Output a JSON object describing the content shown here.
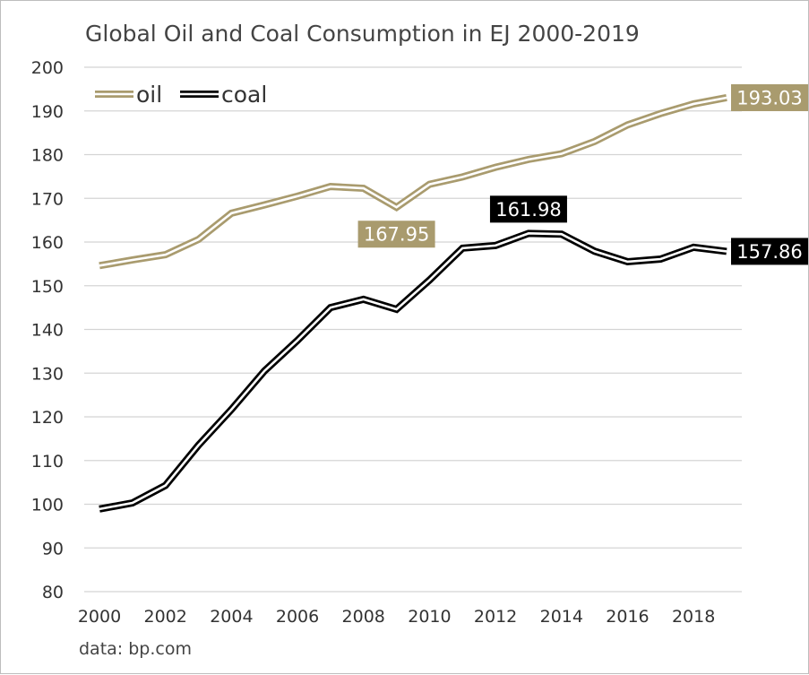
{
  "chart_data": {
    "type": "line",
    "title": "Global Oil and Coal Consumption in EJ 2000-2019",
    "source": "data: bp.com",
    "x": [
      2000,
      2001,
      2002,
      2003,
      2004,
      2005,
      2006,
      2007,
      2008,
      2009,
      2010,
      2011,
      2012,
      2013,
      2014,
      2015,
      2016,
      2017,
      2018,
      2019
    ],
    "xticks": [
      "2000",
      "2002",
      "2004",
      "2006",
      "2008",
      "2010",
      "2012",
      "2014",
      "2016",
      "2018"
    ],
    "yticks": [
      "80",
      "90",
      "100",
      "110",
      "120",
      "130",
      "140",
      "150",
      "160",
      "170",
      "180",
      "190",
      "200"
    ],
    "ylim": [
      80,
      200
    ],
    "grid": "horizontal",
    "legend_position": "top-left",
    "series": [
      {
        "name": "oil",
        "color": "#a99b6e",
        "values": [
          154.6,
          155.9,
          157.1,
          160.6,
          166.6,
          168.5,
          170.5,
          172.7,
          172.3,
          167.95,
          173.2,
          174.9,
          177.1,
          178.9,
          180.2,
          183.0,
          186.8,
          189.4,
          191.6,
          193.03
        ]
      },
      {
        "name": "coal",
        "color": "#000000",
        "values": [
          98.9,
          100.3,
          104.3,
          113.5,
          121.7,
          130.5,
          137.5,
          145.0,
          146.9,
          144.6,
          151.3,
          158.6,
          159.2,
          161.98,
          161.8,
          157.9,
          155.5,
          156.1,
          158.8,
          157.86
        ]
      }
    ],
    "annotations": [
      {
        "series": "oil",
        "x": 2009,
        "label": "167.95"
      },
      {
        "series": "oil",
        "x": 2019,
        "label": "193.03"
      },
      {
        "series": "coal",
        "x": 2013,
        "label": "161.98"
      },
      {
        "series": "coal",
        "x": 2019,
        "label": "157.86"
      }
    ]
  }
}
